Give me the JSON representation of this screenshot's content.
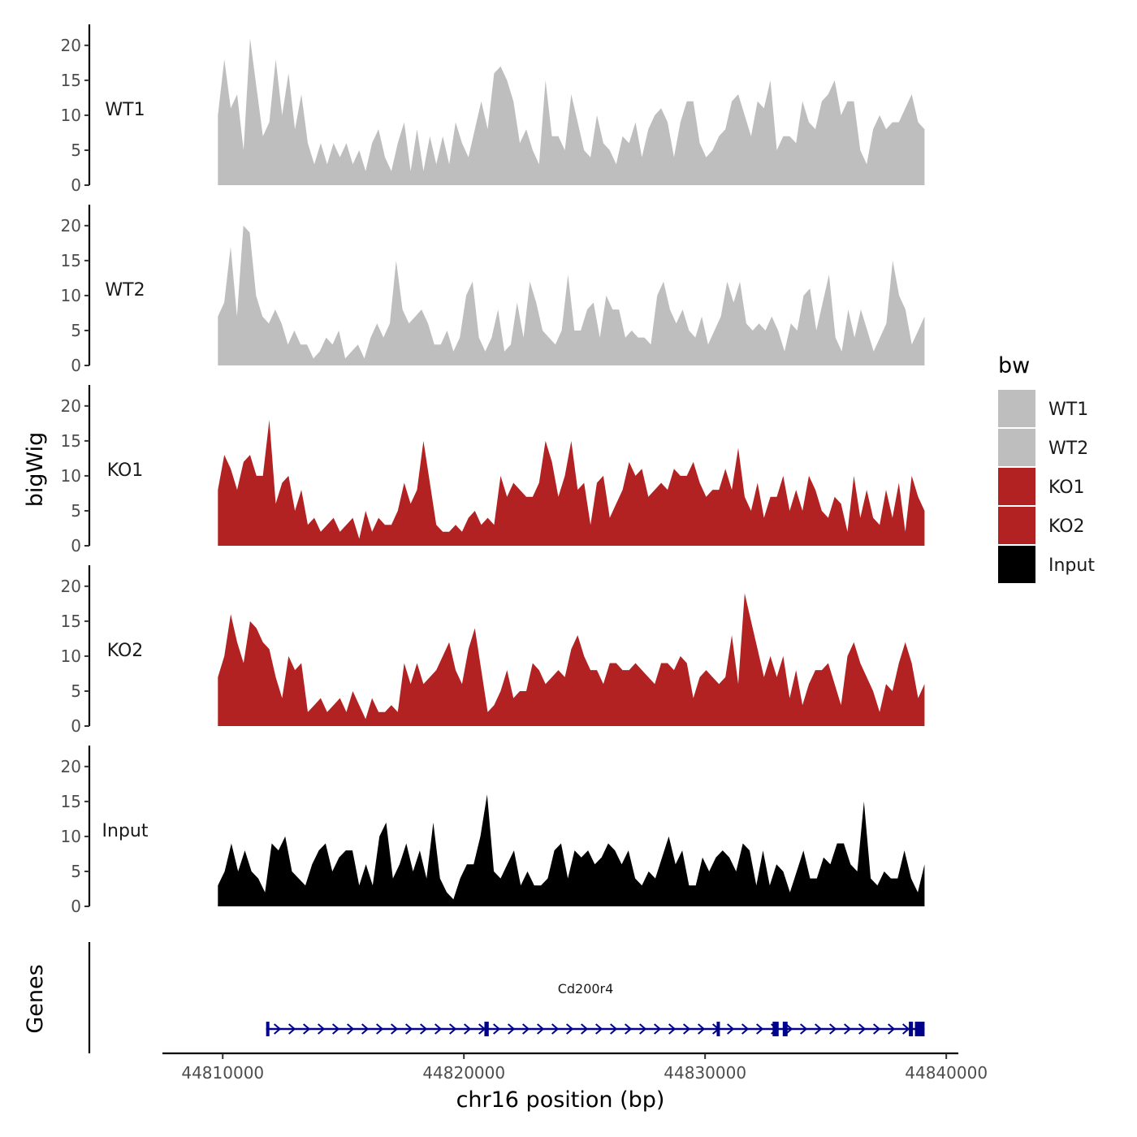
{
  "chart_data": {
    "type": "area",
    "chromosome": "chr16",
    "y_axis_title": "bigWig",
    "x_axis_title": "chr16 position (bp)",
    "genes_axis_title": "Genes",
    "x_range": [
      44807500,
      44840500
    ],
    "x_ticks": [
      44810000,
      44820000,
      44830000,
      44840000
    ],
    "x_tick_labels": [
      "44810000",
      "44820000",
      "44830000",
      "44840000"
    ],
    "y_range": [
      0,
      23
    ],
    "y_ticks": [
      0,
      5,
      10,
      15,
      20
    ],
    "y_tick_labels": [
      "0",
      "5",
      "10",
      "15",
      "20"
    ],
    "signal_start": 44809800,
    "signal_end": 44839100,
    "legend": {
      "title": "bw",
      "entries": [
        {
          "label": "WT1",
          "color": "#BEBEBE"
        },
        {
          "label": "WT2",
          "color": "#BEBEBE"
        },
        {
          "label": "KO1",
          "color": "#B22222"
        },
        {
          "label": "KO2",
          "color": "#B22222"
        },
        {
          "label": "Input",
          "color": "#000000"
        }
      ]
    },
    "tracks": [
      {
        "name": "WT1",
        "color": "#BEBEBE",
        "values": [
          10,
          18,
          11,
          13,
          5,
          21,
          14,
          7,
          9,
          18,
          10,
          16,
          8,
          13,
          6,
          3,
          6,
          3,
          6,
          4,
          6,
          3,
          5,
          2,
          6,
          8,
          4,
          2,
          6,
          9,
          2,
          8,
          2,
          7,
          3,
          7,
          3,
          9,
          6,
          4,
          8,
          12,
          8,
          16,
          17,
          15,
          12,
          6,
          8,
          5,
          3,
          15,
          7,
          7,
          5,
          13,
          9,
          5,
          4,
          10,
          6,
          5,
          3,
          7,
          6,
          9,
          4,
          8,
          10,
          11,
          9,
          4,
          9,
          12,
          12,
          6,
          4,
          5,
          7,
          8,
          12,
          13,
          10,
          7,
          12,
          11,
          15,
          5,
          7,
          7,
          6,
          12,
          9,
          8,
          12,
          13,
          15,
          10,
          12,
          12,
          5,
          3,
          8,
          10,
          8,
          9,
          9,
          11,
          13,
          9,
          8
        ]
      },
      {
        "name": "WT2",
        "color": "#BEBEBE",
        "values": [
          7,
          9,
          17,
          7,
          20,
          19,
          10,
          7,
          6,
          8,
          6,
          3,
          5,
          3,
          3,
          1,
          2,
          4,
          3,
          5,
          1,
          2,
          3,
          1,
          4,
          6,
          4,
          6,
          15,
          8,
          6,
          7,
          8,
          6,
          3,
          3,
          5,
          2,
          4,
          10,
          12,
          4,
          2,
          4,
          8,
          2,
          3,
          9,
          4,
          12,
          9,
          5,
          4,
          3,
          5,
          13,
          5,
          5,
          8,
          9,
          4,
          10,
          8,
          8,
          4,
          5,
          4,
          4,
          3,
          10,
          12,
          8,
          6,
          8,
          5,
          4,
          7,
          3,
          5,
          7,
          12,
          9,
          12,
          6,
          5,
          6,
          5,
          7,
          5,
          2,
          6,
          5,
          10,
          11,
          5,
          9,
          13,
          4,
          2,
          8,
          4,
          8,
          5,
          2,
          4,
          6,
          15,
          10,
          8,
          3,
          5,
          7
        ]
      },
      {
        "name": "KO1",
        "color": "#B22222",
        "values": [
          8,
          13,
          11,
          8,
          12,
          13,
          10,
          10,
          18,
          6,
          9,
          10,
          5,
          8,
          3,
          4,
          2,
          3,
          4,
          2,
          3,
          4,
          1,
          5,
          2,
          4,
          3,
          3,
          5,
          9,
          6,
          8,
          15,
          9,
          3,
          2,
          2,
          3,
          2,
          4,
          5,
          3,
          4,
          3,
          10,
          7,
          9,
          8,
          7,
          7,
          9,
          15,
          12,
          7,
          10,
          15,
          8,
          9,
          3,
          9,
          10,
          4,
          6,
          8,
          12,
          10,
          11,
          7,
          8,
          9,
          8,
          11,
          10,
          10,
          12,
          9,
          7,
          8,
          8,
          11,
          8,
          14,
          7,
          5,
          9,
          4,
          7,
          7,
          10,
          5,
          8,
          5,
          10,
          8,
          5,
          4,
          7,
          6,
          2,
          10,
          4,
          8,
          4,
          3,
          8,
          4,
          9,
          2,
          10,
          7,
          5
        ]
      },
      {
        "name": "KO2",
        "color": "#B22222",
        "values": [
          7,
          10,
          16,
          12,
          9,
          15,
          14,
          12,
          11,
          7,
          4,
          10,
          8,
          9,
          2,
          3,
          4,
          2,
          3,
          4,
          2,
          5,
          3,
          1,
          4,
          2,
          2,
          3,
          2,
          9,
          6,
          9,
          6,
          7,
          8,
          10,
          12,
          8,
          6,
          11,
          14,
          8,
          2,
          3,
          5,
          8,
          4,
          5,
          5,
          9,
          8,
          6,
          7,
          8,
          7,
          11,
          13,
          10,
          8,
          8,
          6,
          9,
          9,
          8,
          8,
          9,
          8,
          7,
          6,
          9,
          9,
          8,
          10,
          9,
          4,
          7,
          8,
          7,
          6,
          7,
          13,
          6,
          19,
          15,
          11,
          7,
          10,
          7,
          10,
          4,
          8,
          3,
          6,
          8,
          8,
          9,
          6,
          3,
          10,
          12,
          9,
          7,
          5,
          2,
          6,
          5,
          9,
          12,
          9,
          4,
          6
        ]
      },
      {
        "name": "Input",
        "color": "#000000",
        "values": [
          3,
          5,
          9,
          5,
          8,
          5,
          4,
          2,
          9,
          8,
          10,
          5,
          4,
          3,
          6,
          8,
          9,
          5,
          7,
          8,
          8,
          3,
          6,
          3,
          10,
          12,
          4,
          6,
          9,
          5,
          8,
          4,
          12,
          4,
          2,
          1,
          4,
          6,
          6,
          10,
          16,
          5,
          4,
          6,
          8,
          3,
          5,
          3,
          3,
          4,
          8,
          9,
          4,
          8,
          7,
          8,
          6,
          7,
          9,
          8,
          6,
          8,
          4,
          3,
          5,
          4,
          7,
          10,
          6,
          8,
          3,
          3,
          7,
          5,
          7,
          8,
          7,
          5,
          9,
          8,
          3,
          8,
          3,
          6,
          5,
          2,
          5,
          8,
          4,
          4,
          7,
          6,
          9,
          9,
          6,
          5,
          15,
          4,
          3,
          5,
          4,
          4,
          8,
          4,
          2,
          6
        ]
      }
    ],
    "gene_track": {
      "gene_name": "Cd200r4",
      "color": "#00008B",
      "start": 44811800,
      "end": 44839100,
      "strand": "+",
      "exons": [
        {
          "start": 44811800,
          "end": 44811870
        },
        {
          "start": 44820850,
          "end": 44821030
        },
        {
          "start": 44830480,
          "end": 44830600
        },
        {
          "start": 44832800,
          "end": 44833050
        },
        {
          "start": 44833220,
          "end": 44833420
        },
        {
          "start": 44838450,
          "end": 44838620
        },
        {
          "start": 44838700,
          "end": 44839100
        }
      ]
    }
  }
}
